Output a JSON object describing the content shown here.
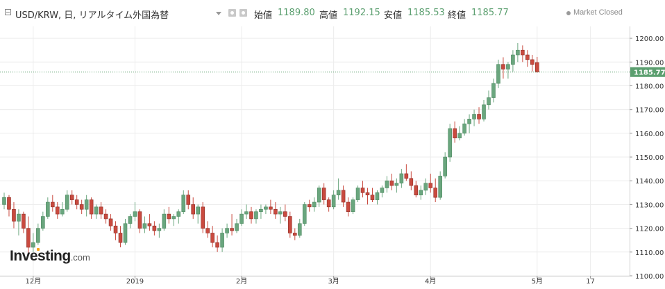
{
  "header": {
    "symbol": "USD/KRW, 日, リアルタイム外国為替",
    "open_label": "始値",
    "open_value": "1189.80",
    "high_label": "高値",
    "high_value": "1192.15",
    "low_label": "安値",
    "low_value": "1185.53",
    "close_label": "終値",
    "close_value": "1185.77",
    "market_status": "Market Closed"
  },
  "logo": {
    "main": "Investing",
    "suffix": ".com"
  },
  "colors": {
    "up": "#6aa67e",
    "down": "#c94a3f",
    "last_price_bg": "#5b9f6f",
    "grid": "#ececec"
  },
  "chart_data": {
    "type": "candlestick",
    "ylim": [
      1100,
      1205
    ],
    "yticks": [
      1100,
      1110,
      1120,
      1130,
      1140,
      1150,
      1160,
      1170,
      1180,
      1190,
      1200
    ],
    "ytick_labels": [
      "1100.00",
      "1110.00",
      "1120.00",
      "1130.00",
      "1140.00",
      "1150.00",
      "1160.00",
      "1170.00",
      "1180.00",
      "1190.00",
      "1200.00"
    ],
    "xtick_labels": [
      "12月",
      "2019",
      "2月",
      "3月",
      "4月",
      "5月",
      "17"
    ],
    "xtick_index": [
      6,
      27,
      49,
      68,
      88,
      110,
      121
    ],
    "last_price": 1185.77,
    "last_price_label": "1185.77",
    "ohlc": [
      [
        1130,
        1135,
        1128,
        1133
      ],
      [
        1133,
        1134,
        1125,
        1128
      ],
      [
        1128,
        1131,
        1120,
        1123
      ],
      [
        1123,
        1128,
        1117,
        1126
      ],
      [
        1126,
        1127,
        1118,
        1120
      ],
      [
        1120,
        1125,
        1109,
        1112
      ],
      [
        1112,
        1118,
        1110,
        1114
      ],
      [
        1114,
        1122,
        1113,
        1120
      ],
      [
        1120,
        1127,
        1119,
        1125
      ],
      [
        1125,
        1133,
        1124,
        1131
      ],
      [
        1131,
        1134,
        1127,
        1129
      ],
      [
        1129,
        1131,
        1124,
        1126
      ],
      [
        1126,
        1131,
        1125,
        1128
      ],
      [
        1128,
        1136,
        1127,
        1134
      ],
      [
        1134,
        1136,
        1130,
        1132
      ],
      [
        1132,
        1134,
        1128,
        1130
      ],
      [
        1130,
        1132,
        1126,
        1128
      ],
      [
        1128,
        1134,
        1125,
        1132
      ],
      [
        1132,
        1133,
        1124,
        1126
      ],
      [
        1126,
        1130,
        1124,
        1129
      ],
      [
        1129,
        1131,
        1124,
        1126
      ],
      [
        1126,
        1128,
        1122,
        1124
      ],
      [
        1124,
        1126,
        1119,
        1121
      ],
      [
        1121,
        1123,
        1115,
        1118
      ],
      [
        1118,
        1121,
        1112,
        1114
      ],
      [
        1114,
        1124,
        1113,
        1122
      ],
      [
        1122,
        1126,
        1120,
        1125
      ],
      [
        1125,
        1131,
        1123,
        1127
      ],
      [
        1127,
        1128,
        1118,
        1120
      ],
      [
        1120,
        1125,
        1118,
        1122
      ],
      [
        1122,
        1126,
        1119,
        1121
      ],
      [
        1121,
        1123,
        1117,
        1119
      ],
      [
        1119,
        1122,
        1116,
        1120
      ],
      [
        1120,
        1128,
        1119,
        1126
      ],
      [
        1126,
        1129,
        1122,
        1124
      ],
      [
        1124,
        1126,
        1121,
        1125
      ],
      [
        1125,
        1128,
        1122,
        1127
      ],
      [
        1127,
        1136,
        1126,
        1134
      ],
      [
        1134,
        1136,
        1128,
        1130
      ],
      [
        1130,
        1133,
        1124,
        1126
      ],
      [
        1126,
        1130,
        1122,
        1129
      ],
      [
        1129,
        1131,
        1118,
        1120
      ],
      [
        1120,
        1123,
        1116,
        1118
      ],
      [
        1118,
        1121,
        1112,
        1114
      ],
      [
        1114,
        1117,
        1110,
        1112
      ],
      [
        1112,
        1120,
        1110,
        1118
      ],
      [
        1118,
        1122,
        1116,
        1120
      ],
      [
        1120,
        1126,
        1117,
        1119
      ],
      [
        1119,
        1124,
        1118,
        1122
      ],
      [
        1122,
        1128,
        1121,
        1126
      ],
      [
        1126,
        1130,
        1124,
        1127
      ],
      [
        1127,
        1129,
        1122,
        1124
      ],
      [
        1124,
        1128,
        1122,
        1127
      ],
      [
        1127,
        1130,
        1124,
        1128
      ],
      [
        1128,
        1130,
        1126,
        1129
      ],
      [
        1129,
        1132,
        1126,
        1128
      ],
      [
        1128,
        1131,
        1124,
        1126
      ],
      [
        1126,
        1129,
        1122,
        1127
      ],
      [
        1127,
        1130,
        1123,
        1125
      ],
      [
        1125,
        1127,
        1116,
        1118
      ],
      [
        1118,
        1120,
        1115,
        1117
      ],
      [
        1117,
        1124,
        1116,
        1122
      ],
      [
        1122,
        1131,
        1121,
        1130
      ],
      [
        1130,
        1132,
        1127,
        1129
      ],
      [
        1129,
        1133,
        1127,
        1131
      ],
      [
        1131,
        1138,
        1129,
        1137
      ],
      [
        1137,
        1139,
        1130,
        1132
      ],
      [
        1132,
        1133,
        1127,
        1129
      ],
      [
        1129,
        1136,
        1128,
        1134
      ],
      [
        1134,
        1141,
        1132,
        1136
      ],
      [
        1136,
        1138,
        1129,
        1131
      ],
      [
        1131,
        1133,
        1125,
        1127
      ],
      [
        1127,
        1133,
        1126,
        1132
      ],
      [
        1132,
        1138,
        1131,
        1137
      ],
      [
        1137,
        1140,
        1133,
        1135
      ],
      [
        1135,
        1137,
        1130,
        1134
      ],
      [
        1134,
        1137,
        1131,
        1132
      ],
      [
        1132,
        1136,
        1130,
        1135
      ],
      [
        1135,
        1138,
        1133,
        1137
      ],
      [
        1137,
        1142,
        1135,
        1140
      ],
      [
        1140,
        1143,
        1136,
        1138
      ],
      [
        1138,
        1141,
        1135,
        1139
      ],
      [
        1139,
        1145,
        1137,
        1143
      ],
      [
        1143,
        1147,
        1140,
        1141
      ],
      [
        1141,
        1144,
        1136,
        1138
      ],
      [
        1138,
        1140,
        1133,
        1134
      ],
      [
        1134,
        1138,
        1132,
        1136
      ],
      [
        1136,
        1141,
        1134,
        1139
      ],
      [
        1139,
        1143,
        1135,
        1137
      ],
      [
        1137,
        1141,
        1131,
        1133
      ],
      [
        1133,
        1144,
        1132,
        1142
      ],
      [
        1142,
        1152,
        1141,
        1150
      ],
      [
        1150,
        1164,
        1148,
        1162
      ],
      [
        1162,
        1165,
        1156,
        1158
      ],
      [
        1158,
        1163,
        1157,
        1160
      ],
      [
        1160,
        1166,
        1159,
        1164
      ],
      [
        1164,
        1168,
        1160,
        1166
      ],
      [
        1166,
        1170,
        1163,
        1168
      ],
      [
        1168,
        1171,
        1164,
        1166
      ],
      [
        1166,
        1174,
        1165,
        1172
      ],
      [
        1172,
        1178,
        1170,
        1175
      ],
      [
        1175,
        1183,
        1173,
        1181
      ],
      [
        1181,
        1191,
        1179,
        1189
      ],
      [
        1189,
        1192,
        1183,
        1187
      ],
      [
        1187,
        1190,
        1183,
        1189
      ],
      [
        1189,
        1195,
        1186,
        1193
      ],
      [
        1193,
        1198,
        1190,
        1195
      ],
      [
        1195,
        1197,
        1190,
        1193
      ],
      [
        1193,
        1195,
        1188,
        1191
      ],
      [
        1191,
        1193,
        1186,
        1189
      ],
      [
        1189.8,
        1192.15,
        1185.53,
        1185.77
      ]
    ],
    "grid": true
  }
}
